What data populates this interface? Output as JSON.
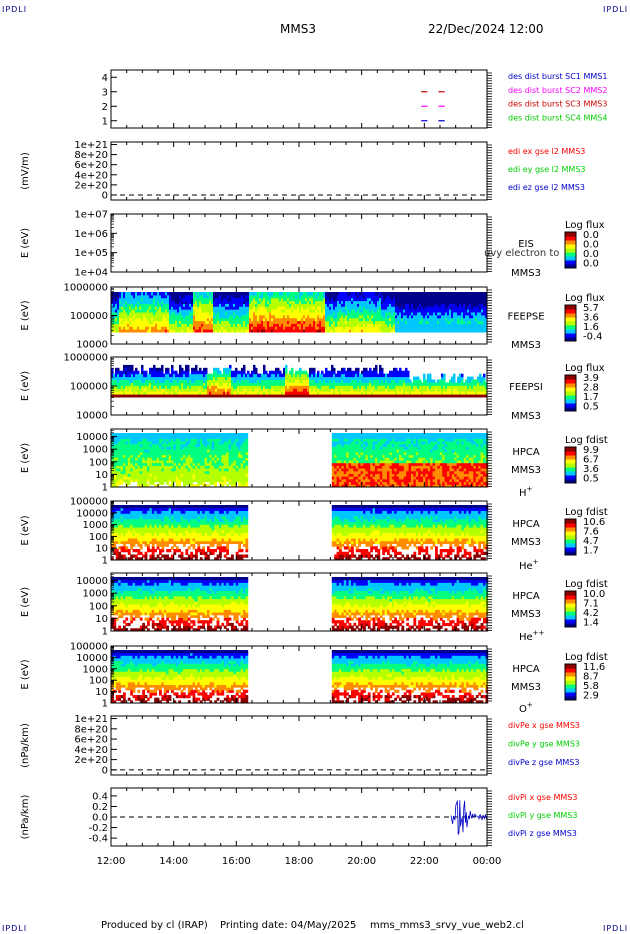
{
  "header": {
    "corner_label": "IPDLI",
    "spacecraft": "MMS3",
    "date": "22/Dec/2024 12:00"
  },
  "footer": {
    "produced_by": "Produced by cl (IRAP)",
    "printing_date": "Printing date: 04/May/2025",
    "script": "mms_mms3_srvy_vue_web2.cl"
  },
  "colors": {
    "red": "#ff0000",
    "green": "#00cc00",
    "blue": "#0000cc",
    "magenta": "#ff00ff",
    "colorbar": [
      "#ffffff",
      "#00008b",
      "#0000ff",
      "#00c8ff",
      "#00ff80",
      "#b4ff00",
      "#ffff00",
      "#ff8c00",
      "#ff0000",
      "#8b0000"
    ]
  },
  "chart_data": [
    {
      "type": "line",
      "panel": "burst",
      "ylim": [
        0.5,
        4.5
      ],
      "yticks": [
        "1",
        "2",
        "3",
        "4"
      ],
      "legend": [
        {
          "name": "des dist burst SC1 MMS1",
          "color": "#0000cc"
        },
        {
          "name": "des dist burst SC2 MMS2",
          "color": "#ff00ff"
        },
        {
          "name": "des dist burst SC3 MMS3",
          "color": "#cc0000"
        },
        {
          "name": "des dist burst SC4 MMS4",
          "color": "#00cc00"
        }
      ],
      "series": [
        {
          "name": "des dist burst SC1 MMS1",
          "y": 1,
          "intervals": [
            [
              21.9,
              22.1
            ],
            [
              22.45,
              22.65
            ]
          ]
        },
        {
          "name": "des dist burst SC2 MMS2",
          "y": 2,
          "intervals": [
            [
              21.9,
              22.1
            ],
            [
              22.45,
              22.65
            ]
          ]
        },
        {
          "name": "des dist burst SC3 MMS3",
          "y": 3,
          "intervals": [
            [
              21.9,
              22.1
            ],
            [
              22.45,
              22.65
            ]
          ]
        }
      ]
    },
    {
      "type": "line",
      "panel": "edi-electric-field",
      "ylabel": "(mV/m)",
      "yticks": [
        "0",
        "2e+20",
        "4e+20",
        "6e+20",
        "8e+20",
        "1e+21"
      ],
      "ylim": [
        -1e+20,
        1.05e+21
      ],
      "zero_line": true,
      "legend": [
        {
          "name": "edi ex gse l2 MMS3",
          "color": "#ff0000"
        },
        {
          "name": "edi ey gse l2 MMS3",
          "color": "#00cc00"
        },
        {
          "name": "edi ez gse l2 MMS3",
          "color": "#0000cc"
        }
      ]
    },
    {
      "type": "heatmap",
      "panel": "eis",
      "ylabel": "E (eV)",
      "yticks": [
        "1e+04",
        "1e+05",
        "1e+06",
        "1e+07"
      ],
      "ylim": [
        10000,
        10000000
      ],
      "yscale": "log",
      "instrument": "EIS",
      "overlay": "uvy electron to",
      "spacecraft": "MMS3",
      "colorbar_title": "Log flux",
      "colorbar_ticks": [
        "0.0",
        "0.0",
        "0.0",
        "0.0"
      ]
    },
    {
      "type": "heatmap",
      "panel": "feeps-electron",
      "ylabel": "E (eV)",
      "yticks": [
        "10000",
        "100000",
        "1000000"
      ],
      "ylim": [
        10000,
        1000000
      ],
      "yscale": "log",
      "instrument": "FEEPSE",
      "spacecraft": "MMS3",
      "colorbar_title": "Log flux",
      "colorbar_ticks": [
        "5.7",
        "3.6",
        "1.6",
        "-0.4"
      ]
    },
    {
      "type": "heatmap",
      "panel": "feeps-ion",
      "ylabel": "E (eV)",
      "yticks": [
        "10000",
        "100000",
        "1000000"
      ],
      "ylim": [
        10000,
        1000000
      ],
      "yscale": "log",
      "instrument": "FEEPSI",
      "spacecraft": "MMS3",
      "colorbar_title": "Log flux",
      "colorbar_ticks": [
        "3.9",
        "2.8",
        "1.7",
        "0.5"
      ]
    },
    {
      "type": "heatmap",
      "panel": "hpca-h",
      "ylabel": "E (eV)",
      "yticks": [
        "1",
        "10",
        "100",
        "1000",
        "10000"
      ],
      "ylim": [
        1,
        40000
      ],
      "yscale": "log",
      "instrument": "HPCA",
      "spacecraft": "MMS3",
      "species": "H",
      "charge": "+",
      "colorbar_title": "Log fdist",
      "colorbar_ticks": [
        "9.9",
        "6.7",
        "3.6",
        "0.5"
      ],
      "data_gap": [
        16.3,
        19.0
      ]
    },
    {
      "type": "heatmap",
      "panel": "hpca-he1",
      "ylabel": "E (eV)",
      "yticks": [
        "1",
        "10",
        "100",
        "1000",
        "10000",
        "100000"
      ],
      "ylim": [
        1,
        100000
      ],
      "yscale": "log",
      "instrument": "HPCA",
      "spacecraft": "MMS3",
      "species": "He",
      "charge": "+",
      "colorbar_title": "Log fdist",
      "colorbar_ticks": [
        "10.6",
        "7.6",
        "4.7",
        "1.7"
      ],
      "data_gap": [
        16.3,
        19.0
      ]
    },
    {
      "type": "heatmap",
      "panel": "hpca-he2",
      "ylabel": "E (eV)",
      "yticks": [
        "1",
        "10",
        "100",
        "1000",
        "10000"
      ],
      "ylim": [
        1,
        40000
      ],
      "yscale": "log",
      "instrument": "HPCA",
      "spacecraft": "MMS3",
      "species": "He",
      "charge": "++",
      "colorbar_title": "Log fdist",
      "colorbar_ticks": [
        "10.0",
        "7.1",
        "4.2",
        "1.4"
      ],
      "data_gap": [
        16.3,
        19.0
      ]
    },
    {
      "type": "heatmap",
      "panel": "hpca-o",
      "ylabel": "E (eV)",
      "yticks": [
        "1",
        "10",
        "100",
        "1000",
        "10000",
        "100000"
      ],
      "ylim": [
        1,
        100000
      ],
      "yscale": "log",
      "instrument": "HPCA",
      "spacecraft": "MMS3",
      "species": "O",
      "charge": "+",
      "colorbar_title": "Log fdist",
      "colorbar_ticks": [
        "11.6",
        "8.7",
        "5.8",
        "2.9"
      ],
      "data_gap": [
        16.3,
        19.0
      ]
    },
    {
      "type": "line",
      "panel": "div-pe",
      "ylabel": "(nPa/km)",
      "yticks": [
        "0",
        "2e+20",
        "4e+20",
        "6e+20",
        "8e+20",
        "1e+21"
      ],
      "ylim": [
        -1e+20,
        1.05e+21
      ],
      "zero_line": true,
      "legend": [
        {
          "name": "divPe x gse MMS3",
          "color": "#ff0000"
        },
        {
          "name": "divPe y gse MMS3",
          "color": "#00cc00"
        },
        {
          "name": "divPe z gse MMS3",
          "color": "#0000cc"
        }
      ]
    },
    {
      "type": "line",
      "panel": "div-pi",
      "ylabel": "(nPa/km)",
      "yticks": [
        "-0.4",
        "-0.2",
        "0.0",
        "0.2",
        "0.4"
      ],
      "ylim": [
        -0.55,
        0.55
      ],
      "zero_line": true,
      "legend": [
        {
          "name": "divPi x gse MMS3",
          "color": "#ff0000"
        },
        {
          "name": "divPi y gse MMS3",
          "color": "#00cc00"
        },
        {
          "name": "divPi z gse MMS3",
          "color": "#0000cc"
        }
      ],
      "active_interval": [
        22.85,
        24.0
      ]
    }
  ],
  "xaxis": {
    "range": [
      12,
      24
    ],
    "ticks": [
      "12:00",
      "14:00",
      "16:00",
      "18:00",
      "20:00",
      "22:00",
      "00:00"
    ]
  }
}
